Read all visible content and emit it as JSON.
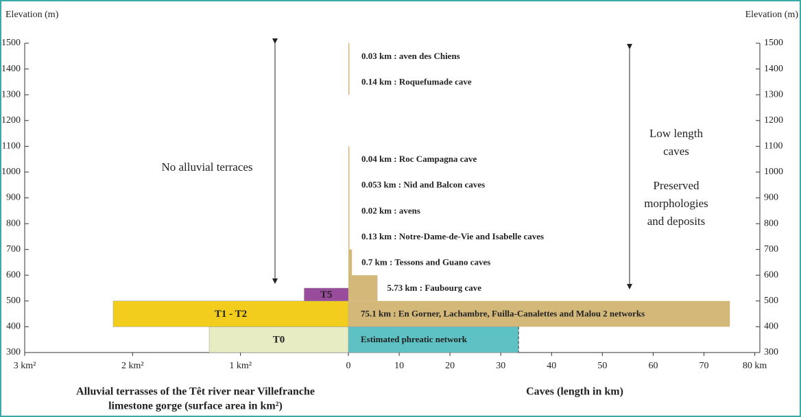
{
  "chart_data": {
    "type": "range-bar",
    "y_label_left": "Elevation (m)",
    "y_label_right": "Elevation (m)",
    "ylim": [
      300,
      1500
    ],
    "yticks": [
      300,
      400,
      500,
      600,
      700,
      800,
      900,
      1000,
      1100,
      1200,
      1300,
      1400,
      1500
    ],
    "left": {
      "title": [
        "Alluvial terrasses of the Têt river near Villefranche",
        "limestone gorge (surface area in km²)"
      ],
      "xlim": [
        0,
        3
      ],
      "xticks": [
        {
          "value": 3,
          "label": "3 km²"
        },
        {
          "value": 2,
          "label": "2 km²"
        },
        {
          "value": 1,
          "label": "1 km²"
        }
      ],
      "bars": [
        {
          "name": "T0",
          "value": 1.29,
          "elevation": [
            300,
            400
          ],
          "color": "#e7ecc2"
        },
        {
          "name": "T1 - T2",
          "value": 2.18,
          "elevation": [
            400,
            500
          ],
          "color": "#f2cd1e"
        },
        {
          "name": "T5",
          "value": 0.41,
          "elevation": [
            500,
            550
          ],
          "color": "#9a4c9c"
        }
      ]
    },
    "right": {
      "title": "Caves  (length in km)",
      "xlim": [
        0,
        81
      ],
      "xticks": [
        0,
        10,
        20,
        30,
        40,
        50,
        60,
        70,
        {
          "value": 80,
          "label": "80 km"
        }
      ],
      "bars": [
        {
          "value": 0.03,
          "value_label": "0.03 km : aven des Chiens",
          "elevation": [
            1400,
            1500
          ],
          "color": "#d3b87a"
        },
        {
          "value": 0.14,
          "value_label": "0.14 km : Roquefumade cave",
          "elevation": [
            1300,
            1400
          ],
          "color": "#d3b87a"
        },
        {
          "value": 0.04,
          "value_label": "0.04 km : Roc Campagna cave",
          "elevation": [
            1000,
            1100
          ],
          "color": "#d3b87a"
        },
        {
          "value": 0.053,
          "value_label": "0.053 km  : Nid and Balcon caves",
          "elevation": [
            900,
            1000
          ],
          "color": "#d3b87a"
        },
        {
          "value": 0.02,
          "value_label": "0.02 km  : avens",
          "elevation": [
            800,
            900
          ],
          "color": "#d3b87a"
        },
        {
          "value": 0.13,
          "value_label": "0.13 km  : Notre-Dame-de-Vie and Isabelle caves",
          "elevation": [
            700,
            800
          ],
          "color": "#d3b87a"
        },
        {
          "value": 0.7,
          "value_label": "0.7 km  : Tessons and Guano caves",
          "elevation": [
            600,
            700
          ],
          "color": "#d3b87a"
        },
        {
          "value": 5.73,
          "value_label": "5.73 km : Faubourg cave",
          "elevation": [
            500,
            600
          ],
          "color": "#d3b87a"
        },
        {
          "value": 75.1,
          "value_label": "75.1 km : En Gorner, Lachambre, Fuilla-Canalettes and Malou 2 networks",
          "elevation": [
            400,
            500
          ],
          "color": "#d3b87a"
        },
        {
          "value": 33.5,
          "value_label": "Estimated phreatic network",
          "elevation": [
            300,
            400
          ],
          "color": "#5ec1c3"
        }
      ]
    },
    "annotations": {
      "left": "No alluvial terraces",
      "right_top": [
        "Low length",
        "caves"
      ],
      "right_bottom": [
        "Preserved",
        "morphologies",
        "and deposits"
      ]
    }
  }
}
